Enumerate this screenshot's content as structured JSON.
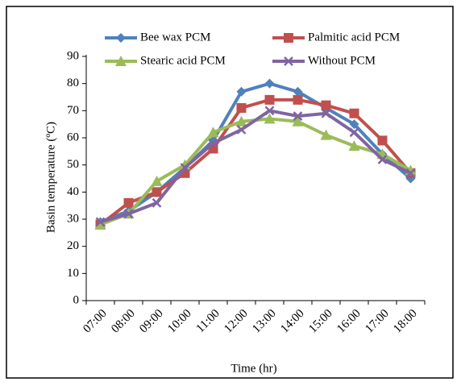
{
  "chart_data": {
    "type": "line",
    "x_label": "Time (hr)",
    "y_label": "Basin temperature (ºC)",
    "categories": [
      "07:00",
      "08:00",
      "09:00",
      "10:00",
      "11:00",
      "12:00",
      "13:00",
      "14:00",
      "15:00",
      "16:00",
      "17:00",
      "18:00"
    ],
    "ylim": [
      0,
      90
    ],
    "yticks": [
      0,
      10,
      20,
      30,
      40,
      50,
      60,
      70,
      80,
      90
    ],
    "grid": false,
    "legend": "top",
    "series": [
      {
        "name": "Bee wax PCM",
        "color": "#4f81bd",
        "marker": "diamond",
        "values": [
          29,
          33,
          40,
          49,
          59,
          77,
          80,
          77,
          71,
          65,
          54,
          45
        ]
      },
      {
        "name": "Palmitic acid PCM",
        "color": "#c0504d",
        "marker": "square",
        "values": [
          28,
          36,
          40,
          47,
          56,
          71,
          74,
          74,
          72,
          69,
          59,
          47
        ]
      },
      {
        "name": "Stearic acid PCM",
        "color": "#9bbb59",
        "marker": "triangle",
        "values": [
          28,
          32,
          44,
          50,
          62,
          66,
          67,
          66,
          61,
          57,
          54,
          48
        ]
      },
      {
        "name": "Without PCM",
        "color": "#8064a2",
        "marker": "x",
        "values": [
          29,
          32,
          36,
          49,
          58,
          63,
          70,
          68,
          69,
          62,
          52,
          47
        ]
      }
    ]
  }
}
